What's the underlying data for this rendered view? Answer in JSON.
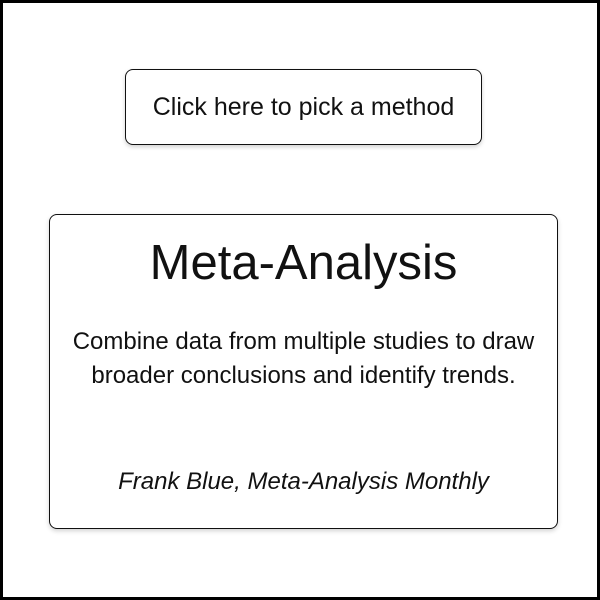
{
  "method_button": {
    "label": "Click here to pick a method"
  },
  "method_card": {
    "title": "Meta-Analysis",
    "description": "Combine data from multiple studies to draw broader conclusions and identify trends.",
    "credit": "Frank Blue, Meta-Analysis Monthly"
  },
  "colors": {
    "frame_border": "#000000",
    "text": "#111111",
    "background": "#ffffff"
  }
}
